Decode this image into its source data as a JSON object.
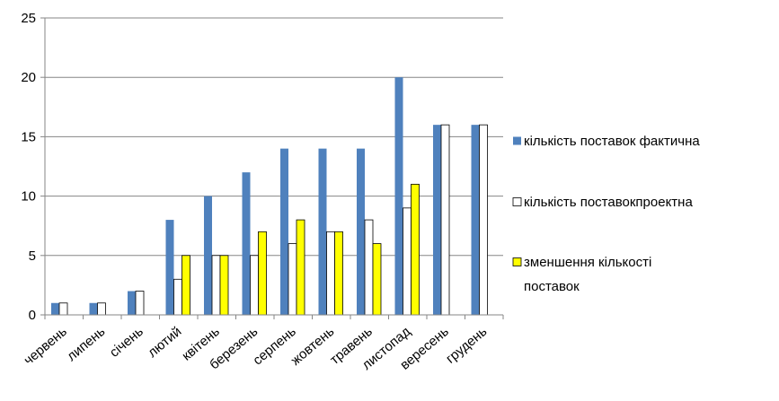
{
  "chart_data": {
    "type": "bar",
    "categories": [
      "червень",
      "липень",
      "січень",
      "лютий",
      "квітень",
      "березень",
      "серпень",
      "жовтень",
      "травень",
      "листопад",
      "вересень",
      "грудень"
    ],
    "series": [
      {
        "name": "кількість поставок фактична",
        "color": "#4F81BD",
        "values": [
          1,
          1,
          2,
          8,
          10,
          12,
          14,
          14,
          14,
          20,
          16,
          16
        ]
      },
      {
        "name": "кількість поставокпроектна",
        "color": "#FFFFFF",
        "values": [
          1,
          1,
          2,
          3,
          5,
          5,
          6,
          7,
          8,
          9,
          16,
          16
        ]
      },
      {
        "name": "зменшення кількості поставок",
        "color": "#FFFF00",
        "values": [
          0,
          0,
          0,
          5,
          5,
          7,
          8,
          7,
          6,
          11,
          0,
          0
        ]
      }
    ],
    "legend_lines": [
      [
        "кількість поставок фактична"
      ],
      [
        "кількість поставокпроектна"
      ],
      [
        "зменшення кількості",
        "поставок"
      ]
    ],
    "ylim": [
      0,
      25
    ],
    "yticks": [
      0,
      5,
      10,
      15,
      20,
      25
    ],
    "grid": true,
    "legend_position": "right"
  }
}
